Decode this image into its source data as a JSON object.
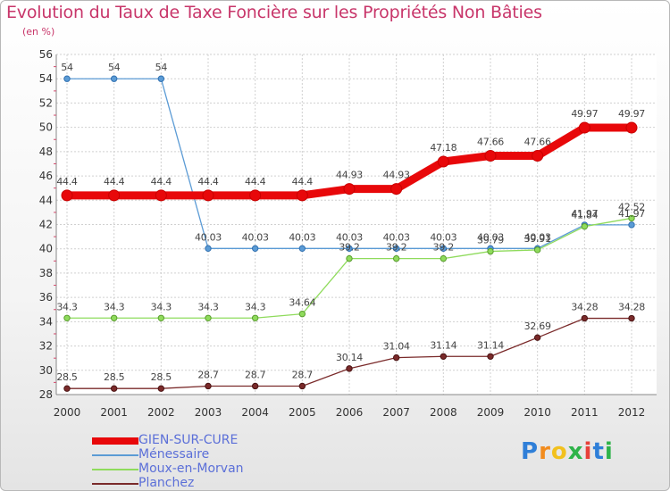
{
  "chart_data": {
    "type": "line",
    "title": "Evolution du Taux de Taxe Foncière sur les Propriétés Non Bâties",
    "ylabel": "(en %)",
    "xlabel": "",
    "ylim": [
      28,
      56
    ],
    "yticks": [
      28,
      30,
      32,
      34,
      36,
      38,
      40,
      42,
      44,
      46,
      48,
      50,
      52,
      54,
      56
    ],
    "categories": [
      "2000",
      "2001",
      "2002",
      "2003",
      "2004",
      "2005",
      "2006",
      "2007",
      "2008",
      "2009",
      "2010",
      "2011",
      "2012"
    ],
    "series": [
      {
        "name": "GIEN-SUR-CURE",
        "color": "#e8080a",
        "values": [
          44.4,
          44.4,
          44.4,
          44.4,
          44.4,
          44.4,
          44.93,
          44.93,
          47.18,
          47.66,
          47.66,
          49.97,
          49.97
        ],
        "labels": [
          "44.4",
          "44.4",
          "44.4",
          "44.4",
          "44.4",
          "44.4",
          "44.93",
          "44.93",
          "47.18",
          "47.66",
          "47.66",
          "49.97",
          "49.97"
        ]
      },
      {
        "name": "Ménessaire",
        "color": "#5b9bd5",
        "values": [
          54,
          54,
          54,
          40.03,
          40.03,
          40.03,
          40.03,
          40.03,
          40.03,
          40.03,
          40.03,
          41.97,
          41.97
        ],
        "labels": [
          "54",
          "54",
          "54",
          "40.03",
          "40.03",
          "40.03",
          "40.03",
          "40.03",
          "40.03",
          "40.03",
          "40.03",
          "41.97",
          "41.97"
        ]
      },
      {
        "name": "Moux-en-Morvan",
        "color": "#8fdb5c",
        "values": [
          34.3,
          34.3,
          34.3,
          34.3,
          34.3,
          34.64,
          39.2,
          39.2,
          39.2,
          39.79,
          39.91,
          41.84,
          42.52
        ],
        "labels": [
          "34.3",
          "34.3",
          "34.3",
          "34.3",
          "34.3",
          "34.64",
          "39.2",
          "39.2",
          "39.2",
          "39.79",
          "39.91",
          "41.84",
          "42.52"
        ]
      },
      {
        "name": "Planchez",
        "color": "#7a2a2a",
        "values": [
          28.5,
          28.5,
          28.5,
          28.7,
          28.7,
          28.7,
          30.14,
          31.04,
          31.14,
          31.14,
          32.69,
          34.28,
          34.28
        ],
        "labels": [
          "28.5",
          "28.5",
          "28.5",
          "28.7",
          "28.7",
          "28.7",
          "30.14",
          "31.04",
          "31.14",
          "31.14",
          "32.69",
          "34.28",
          "34.28"
        ]
      }
    ]
  },
  "logo": {
    "letters": [
      "P",
      "r",
      "o",
      "x",
      "i",
      "t",
      "i"
    ],
    "colors": [
      "#2f7fd8",
      "#f28c1e",
      "#f2c11e",
      "#2fb34a",
      "#e8403a",
      "#2f7fd8",
      "#2fb34a"
    ]
  }
}
